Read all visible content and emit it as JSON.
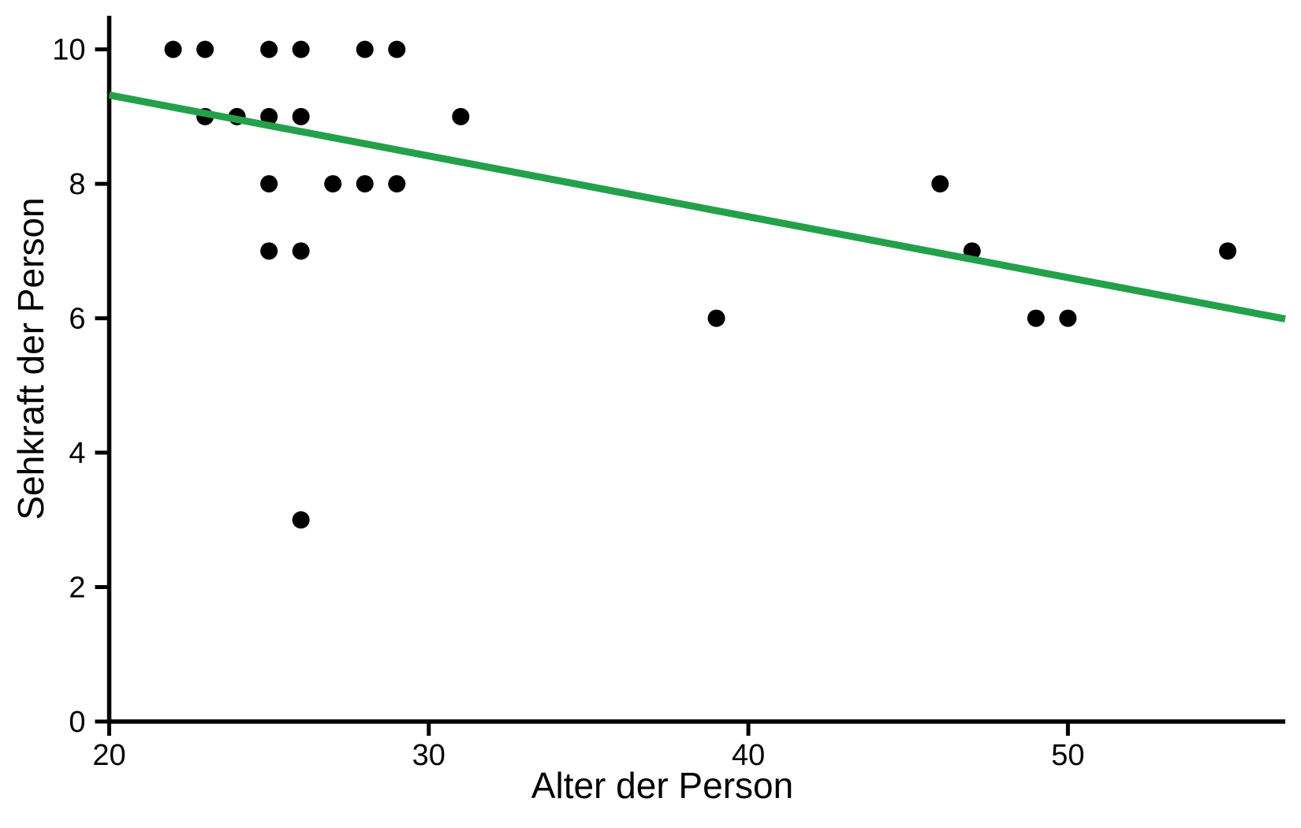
{
  "figure": {
    "background": "#ffffff"
  },
  "chart_data": {
    "type": "scatter",
    "title": "",
    "xlabel": "Alter der Person",
    "ylabel": "Sehkraft der Person",
    "xlim": [
      20,
      56.8
    ],
    "ylim": [
      0,
      10.5
    ],
    "x_ticks": [
      20,
      30,
      40,
      50
    ],
    "y_ticks": [
      0,
      2,
      4,
      6,
      8,
      10
    ],
    "grid": "off",
    "legend": "none",
    "point_color": "#000000",
    "axis_color": "#000000",
    "points": [
      [
        22,
        10
      ],
      [
        23,
        10
      ],
      [
        25,
        10
      ],
      [
        26,
        10
      ],
      [
        28,
        10
      ],
      [
        29,
        10
      ],
      [
        23,
        9
      ],
      [
        24,
        9
      ],
      [
        25,
        9
      ],
      [
        26,
        9
      ],
      [
        31,
        9
      ],
      [
        25,
        8
      ],
      [
        27,
        8
      ],
      [
        28,
        8
      ],
      [
        29,
        8
      ],
      [
        46,
        8
      ],
      [
        25,
        7
      ],
      [
        26,
        7
      ],
      [
        47,
        7
      ],
      [
        55,
        7
      ],
      [
        39,
        6
      ],
      [
        49,
        6
      ],
      [
        50,
        6
      ],
      [
        26,
        3
      ]
    ],
    "trend_line": {
      "type": "linear-regression",
      "color": "#22A14A",
      "x_start": 20,
      "y_start": 9.32,
      "x_end": 56.8,
      "y_end": 5.99,
      "slope": -0.0905,
      "intercept": 11.13
    }
  }
}
